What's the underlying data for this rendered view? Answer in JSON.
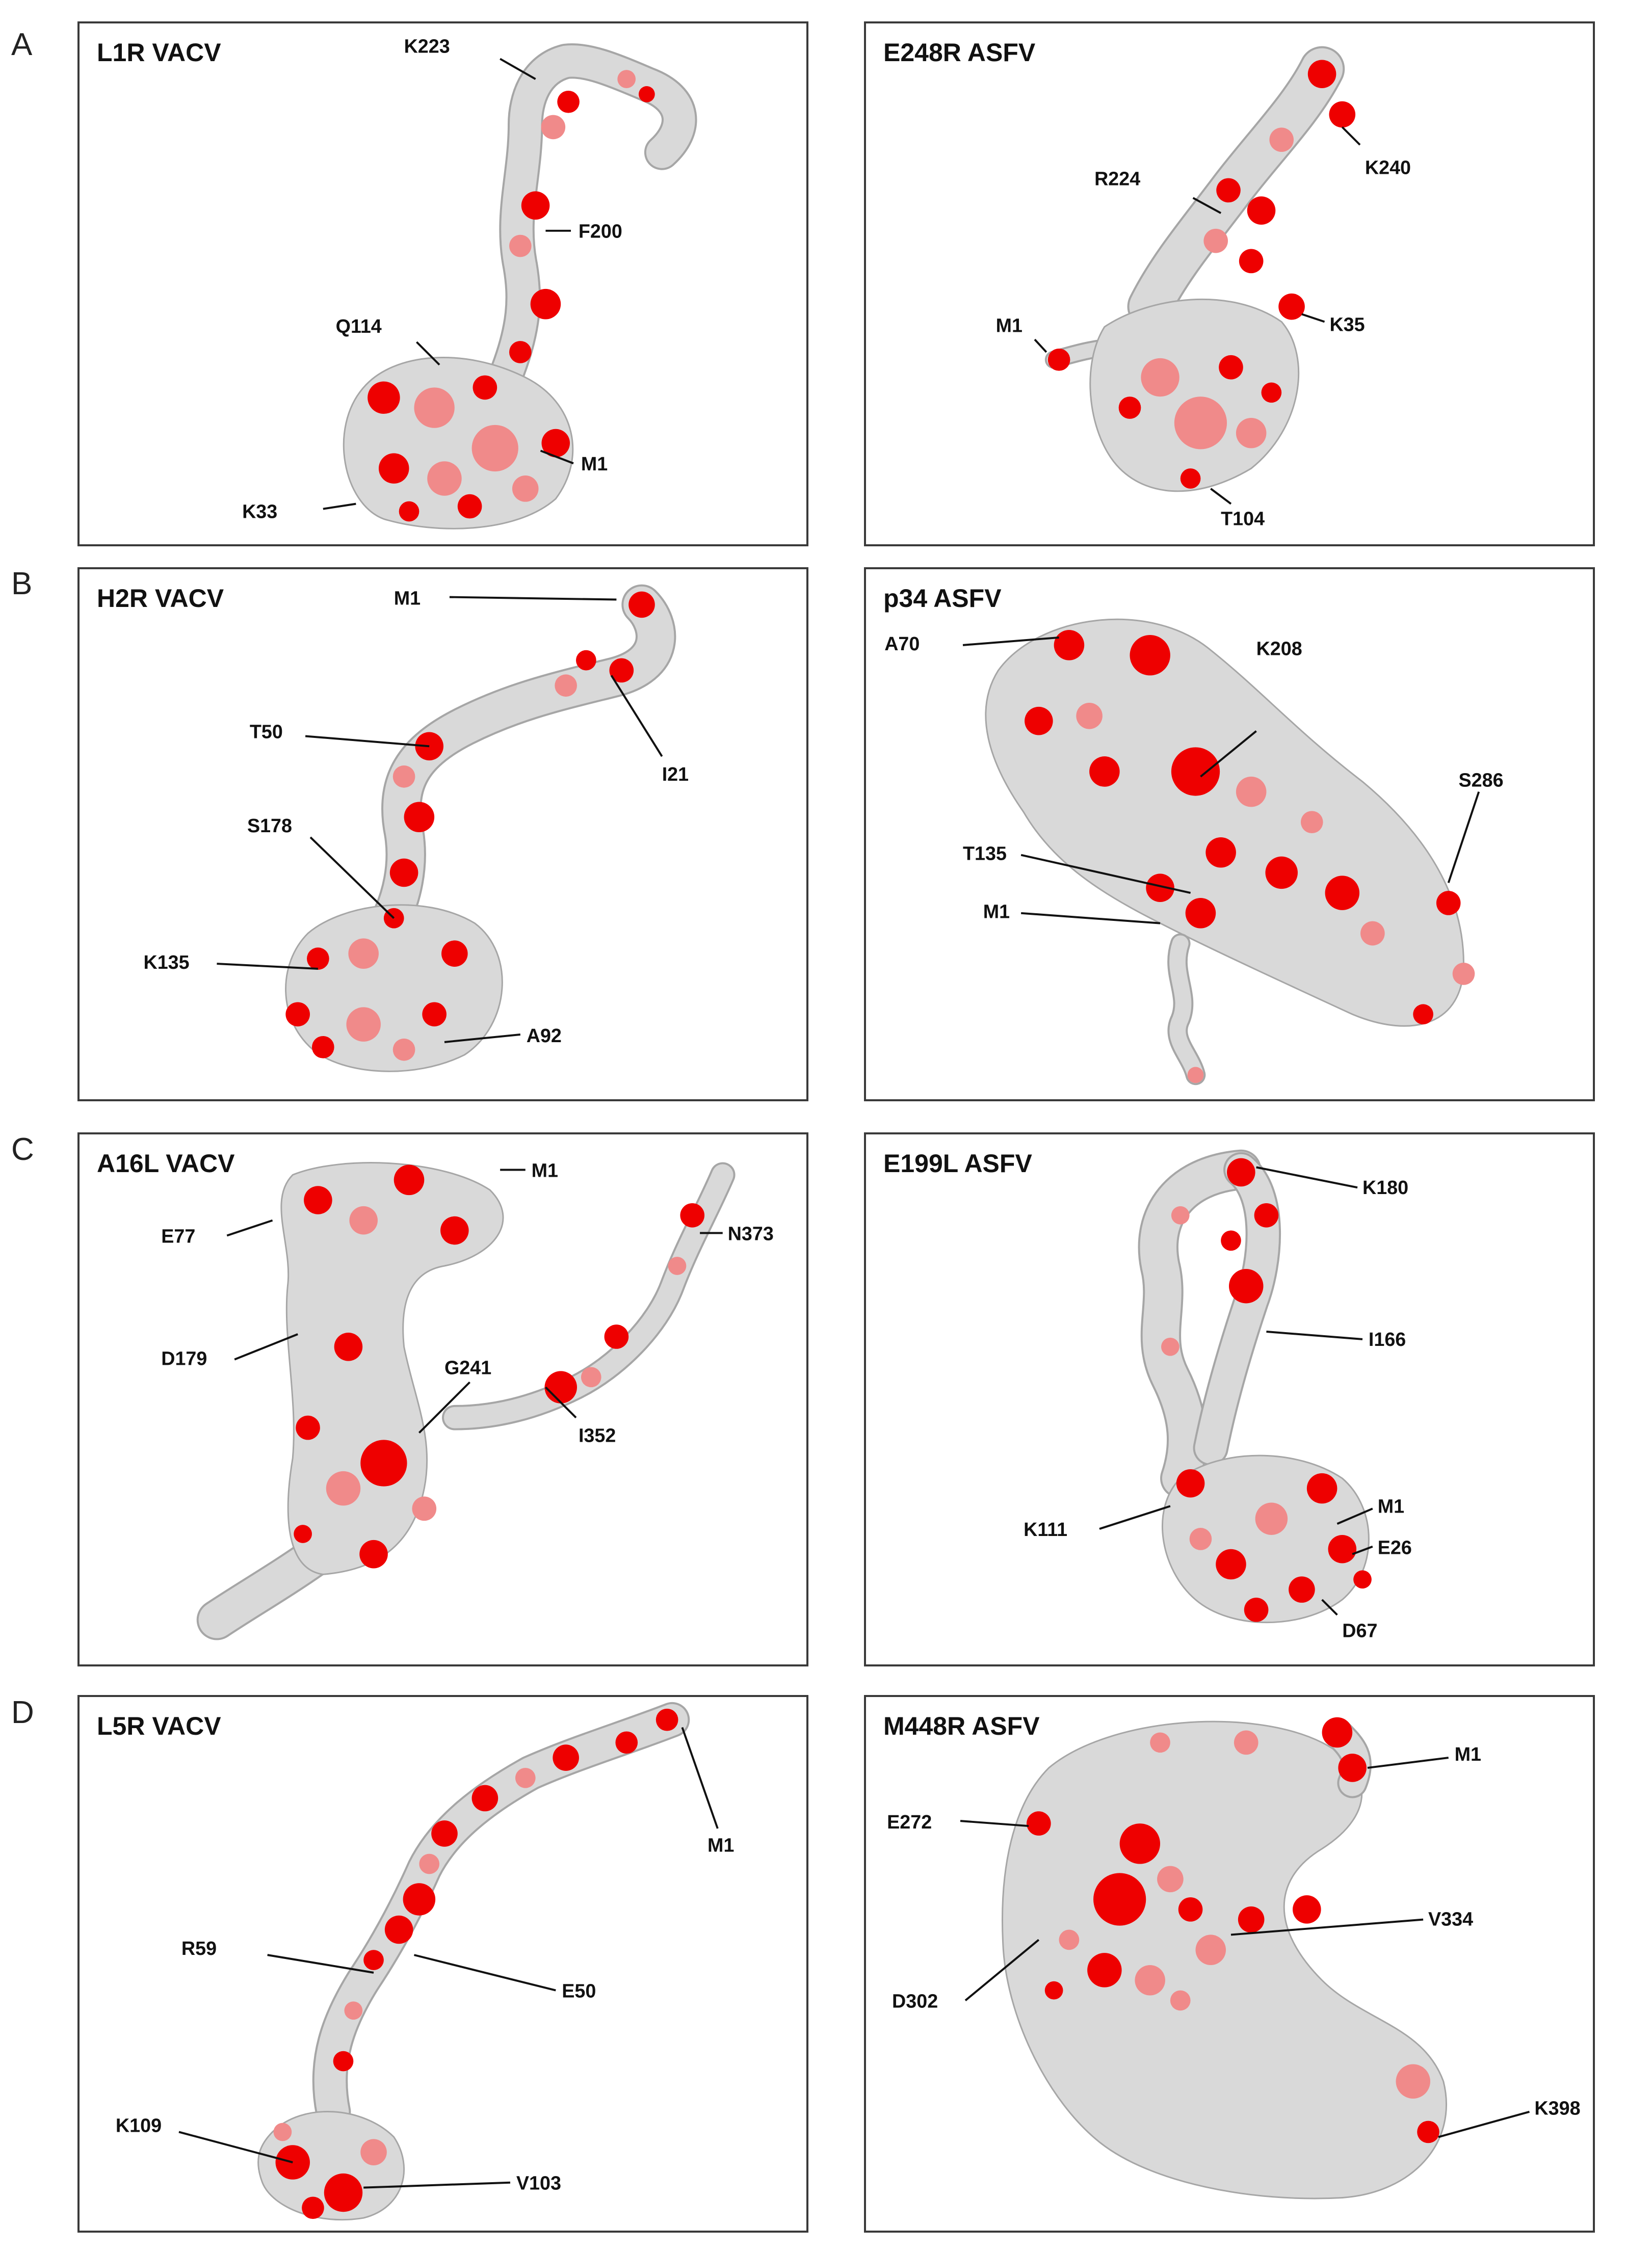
{
  "rows": [
    {
      "letter": "A",
      "panels": [
        {
          "title": "L1R VACV",
          "labels": [
            "K223",
            "F200",
            "Q114",
            "M1",
            "K33"
          ]
        },
        {
          "title": "E248R ASFV",
          "labels": [
            "K240",
            "R224",
            "M1",
            "K35",
            "T104"
          ]
        }
      ]
    },
    {
      "letter": "B",
      "panels": [
        {
          "title": "H2R VACV",
          "labels": [
            "M1",
            "T50",
            "I21",
            "S178",
            "K135",
            "A92"
          ]
        },
        {
          "title": "p34 ASFV",
          "labels": [
            "A70",
            "K208",
            "S286",
            "T135",
            "M1"
          ]
        }
      ]
    },
    {
      "letter": "C",
      "panels": [
        {
          "title": "A16L VACV",
          "labels": [
            "M1",
            "N373",
            "E77",
            "D179",
            "G241",
            "I352"
          ]
        },
        {
          "title": "E199L ASFV",
          "labels": [
            "K180",
            "I166",
            "M1",
            "K111",
            "E26",
            "D67"
          ]
        }
      ]
    },
    {
      "letter": "D",
      "panels": [
        {
          "title": "L5R VACV",
          "labels": [
            "M1",
            "R59",
            "E50",
            "K109",
            "V103"
          ]
        },
        {
          "title": "M448R ASFV",
          "labels": [
            "M1",
            "E272",
            "V334",
            "D302",
            "K398"
          ]
        }
      ]
    }
  ],
  "colors": {
    "high_conservation": "#ee0000",
    "medium_conservation": "#f08a8a",
    "surface": "#d9d9d9"
  }
}
